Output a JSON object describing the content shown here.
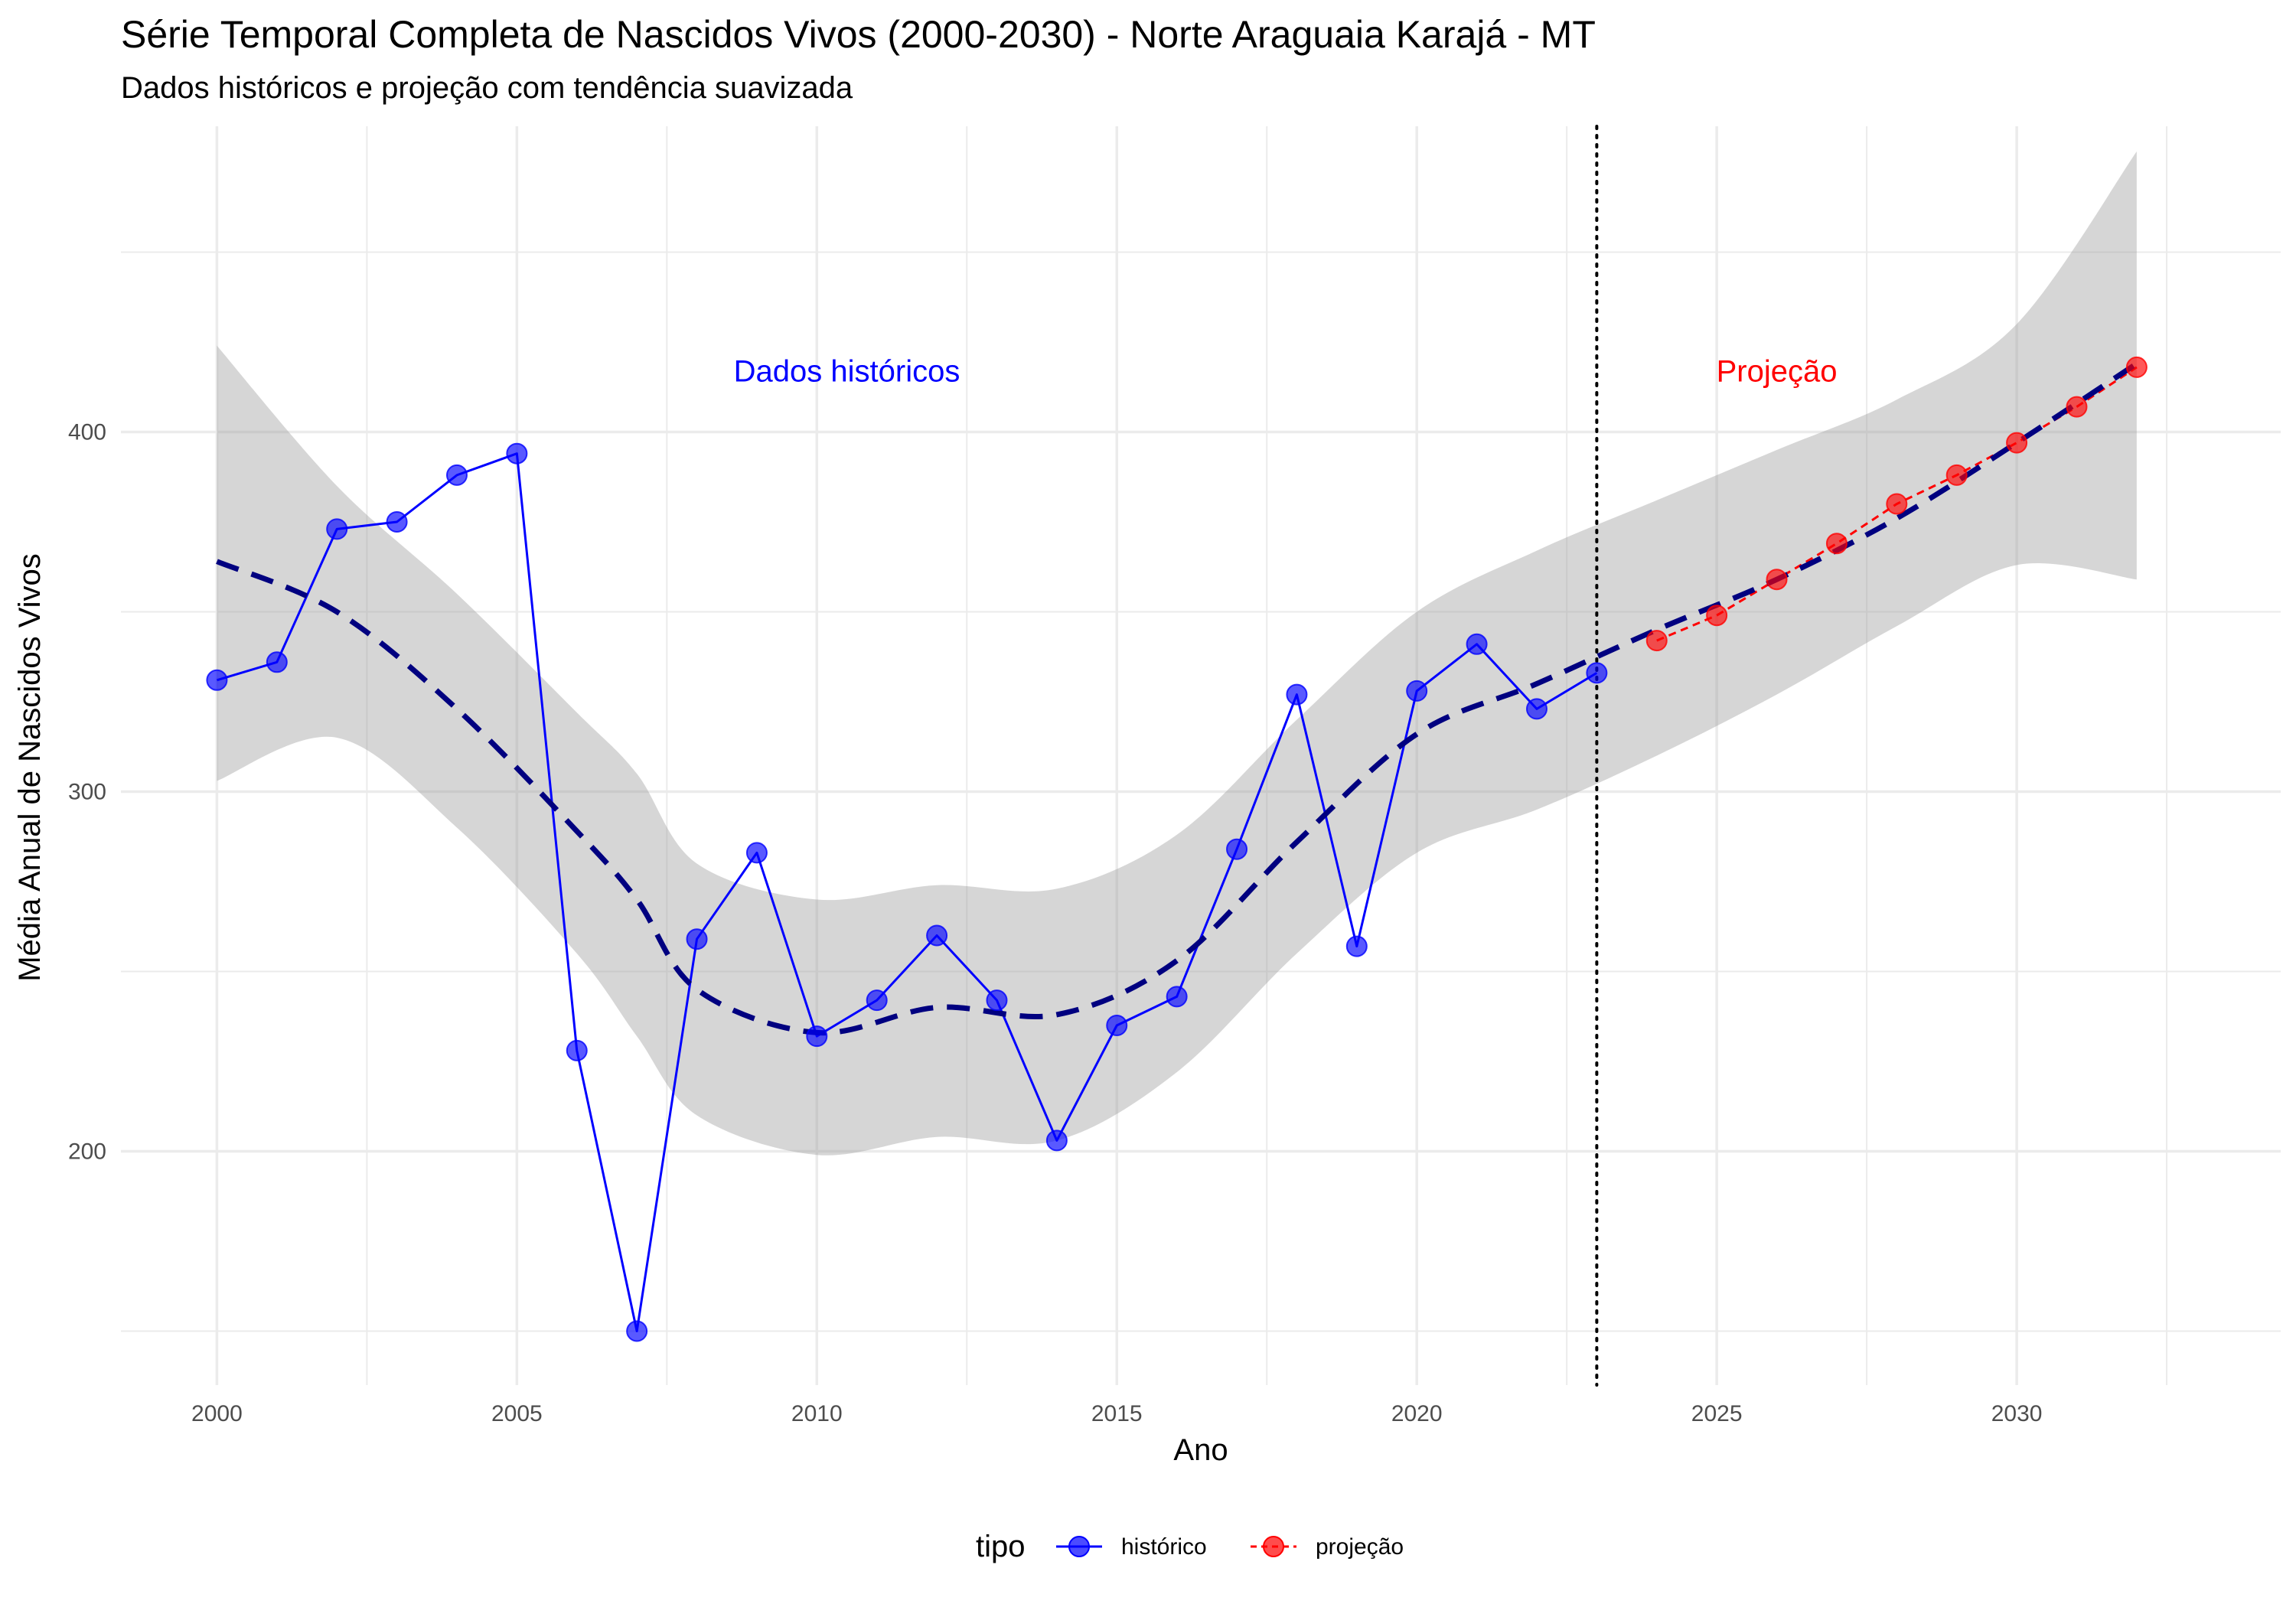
{
  "chart_data": {
    "type": "line",
    "title": "Série Temporal Completa de Nascidos Vivos (2000-2030) -  Norte Araguaia Karajá - MT",
    "subtitle": "Dados históricos e projeção com tendência suavizada",
    "xlabel": "Ano",
    "ylabel": "Média Anual de Nascidos Vivos",
    "xlim": [
      1998.4,
      2034.4
    ],
    "ylim": [
      135,
      485
    ],
    "x_ticks": [
      2000,
      2005,
      2010,
      2015,
      2020,
      2025,
      2030
    ],
    "y_ticks": [
      200,
      300,
      400
    ],
    "grid": true,
    "legend": {
      "title": "tipo",
      "position": "bottom",
      "entries": [
        "histórico",
        "projeção"
      ]
    },
    "series": [
      {
        "name": "histórico",
        "color": "#0000ff",
        "x": [
          2000,
          2001,
          2002,
          2003,
          2004,
          2005,
          2006,
          2007,
          2008,
          2009,
          2010,
          2011,
          2012,
          2013,
          2014,
          2015,
          2016,
          2017,
          2018,
          2019,
          2020,
          2021,
          2022,
          2023
        ],
        "values": [
          331,
          336,
          373,
          375,
          388,
          394,
          228,
          150,
          259,
          283,
          232,
          242,
          260,
          242,
          203,
          235,
          243,
          284,
          327,
          257,
          328,
          341,
          323,
          333
        ]
      },
      {
        "name": "projeção",
        "color": "#ff0000",
        "x": [
          2024,
          2025,
          2026,
          2027,
          2028,
          2029,
          2030,
          2031,
          2032
        ],
        "values": [
          342,
          349,
          359,
          369,
          380,
          388,
          397,
          407,
          418
        ]
      }
    ],
    "trend": {
      "name": "tendência suavizada",
      "color": "#000080",
      "x": [
        2000,
        2002,
        2004,
        2006,
        2007,
        2008,
        2010,
        2012,
        2014,
        2016,
        2018,
        2020,
        2022,
        2024,
        2026,
        2028,
        2030,
        2032
      ],
      "values": [
        364,
        350,
        323,
        289,
        270,
        245,
        233,
        240,
        238,
        253,
        286,
        316,
        330,
        345,
        359,
        376,
        397,
        419
      ],
      "band_lower": [
        303,
        315,
        290,
        255,
        232,
        210,
        199,
        204,
        203,
        222,
        255,
        283,
        295,
        310,
        327,
        346,
        363,
        359
      ],
      "band_upper": [
        424,
        385,
        355,
        322,
        305,
        280,
        270,
        274,
        273,
        288,
        320,
        350,
        367,
        381,
        395,
        409,
        430,
        478
      ]
    },
    "vline": {
      "x": 2023
    },
    "annotations": [
      {
        "text": "Dados históricos",
        "x": 2010.5,
        "y": 417,
        "color": "#0000ff"
      },
      {
        "text": "Projeção",
        "x": 2026,
        "y": 417,
        "color": "#ff0000"
      }
    ]
  }
}
